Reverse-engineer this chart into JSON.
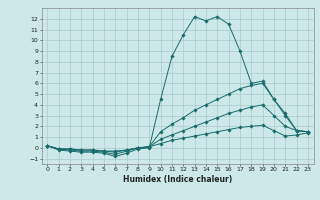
{
  "bg_color": "#cce8e8",
  "grid_color": "#aacccc",
  "line_color": "#1a6b6b",
  "xlabel": "Humidex (Indice chaleur)",
  "xlim": [
    -0.5,
    23.5
  ],
  "ylim": [
    -1.5,
    13.0
  ],
  "yticks": [
    -1,
    0,
    1,
    2,
    3,
    4,
    5,
    6,
    7,
    8,
    9,
    10,
    11,
    12
  ],
  "xticks": [
    0,
    1,
    2,
    3,
    4,
    5,
    6,
    7,
    8,
    9,
    10,
    11,
    12,
    13,
    14,
    15,
    16,
    17,
    18,
    19,
    20,
    21,
    22,
    23
  ],
  "series": [
    {
      "x": [
        0,
        1,
        2,
        3,
        4,
        5,
        6,
        7,
        8,
        9,
        10,
        11,
        12,
        13,
        14,
        15,
        16,
        17,
        18,
        19,
        20,
        21,
        22,
        23
      ],
      "y": [
        0.2,
        -0.2,
        -0.3,
        -0.4,
        -0.4,
        -0.5,
        -0.8,
        -0.5,
        -0.1,
        0.0,
        4.5,
        8.5,
        10.5,
        12.2,
        11.8,
        12.2,
        11.5,
        9.0,
        6.0,
        6.2,
        4.5,
        3.2,
        1.6,
        1.5
      ]
    },
    {
      "x": [
        0,
        1,
        2,
        3,
        4,
        5,
        6,
        7,
        8,
        9,
        10,
        11,
        12,
        13,
        14,
        15,
        16,
        17,
        18,
        19,
        20,
        21,
        22,
        23
      ],
      "y": [
        0.2,
        -0.1,
        -0.2,
        -0.3,
        -0.3,
        -0.4,
        -0.6,
        -0.3,
        0.0,
        0.1,
        1.5,
        2.2,
        2.8,
        3.5,
        4.0,
        4.5,
        5.0,
        5.5,
        5.8,
        6.0,
        4.5,
        3.0,
        1.6,
        1.5
      ]
    },
    {
      "x": [
        0,
        1,
        2,
        3,
        4,
        5,
        6,
        7,
        8,
        9,
        10,
        11,
        12,
        13,
        14,
        15,
        16,
        17,
        18,
        19,
        20,
        21,
        22,
        23
      ],
      "y": [
        0.2,
        -0.1,
        -0.1,
        -0.2,
        -0.2,
        -0.3,
        -0.4,
        -0.2,
        0.0,
        0.1,
        0.8,
        1.2,
        1.6,
        2.0,
        2.4,
        2.8,
        3.2,
        3.5,
        3.8,
        4.0,
        3.0,
        2.0,
        1.6,
        1.5
      ]
    },
    {
      "x": [
        0,
        1,
        2,
        3,
        4,
        5,
        6,
        7,
        8,
        9,
        10,
        11,
        12,
        13,
        14,
        15,
        16,
        17,
        18,
        19,
        20,
        21,
        22,
        23
      ],
      "y": [
        0.2,
        -0.1,
        -0.1,
        -0.2,
        -0.2,
        -0.3,
        -0.3,
        -0.2,
        0.0,
        0.1,
        0.4,
        0.7,
        0.9,
        1.1,
        1.3,
        1.5,
        1.7,
        1.9,
        2.0,
        2.1,
        1.6,
        1.1,
        1.2,
        1.4
      ]
    }
  ]
}
